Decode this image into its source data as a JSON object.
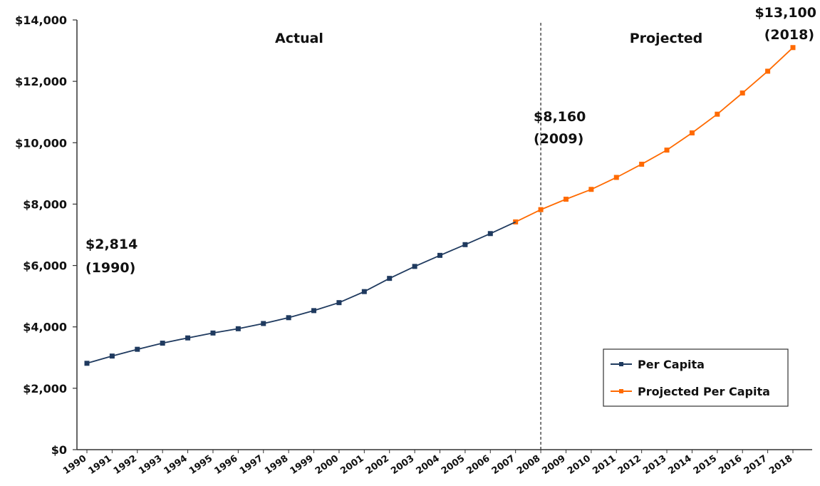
{
  "chart_data": {
    "type": "line",
    "x": [
      1990,
      1991,
      1992,
      1993,
      1994,
      1995,
      1996,
      1997,
      1998,
      1999,
      2000,
      2001,
      2002,
      2003,
      2004,
      2005,
      2006,
      2007,
      2008,
      2009,
      2010,
      2011,
      2012,
      2013,
      2014,
      2015,
      2016,
      2017,
      2018
    ],
    "x_tick_labels": [
      "1990",
      "1991",
      "1992",
      "1993",
      "1994",
      "1995",
      "1996",
      "1997",
      "1998",
      "1999",
      "2000",
      "2001",
      "2002",
      "2003",
      "2004",
      "2005",
      "2006",
      "2007",
      "2008",
      "2009",
      "2010",
      "2011",
      "2012",
      "2013",
      "2014",
      "2015",
      "2016",
      "2017",
      "2018"
    ],
    "y_tick_labels": [
      "$0",
      "$2,000",
      "$4,000",
      "$6,000",
      "$8,000",
      "$10,000",
      "$12,000",
      "$14,000"
    ],
    "y_ticks": [
      0,
      2000,
      4000,
      6000,
      8000,
      10000,
      12000,
      14000
    ],
    "ylim": [
      0,
      14000
    ],
    "grid": false,
    "legend_position": "bottom-right",
    "divider_year": 2008,
    "regions": {
      "actual": "Actual",
      "projected": "Projected"
    },
    "series": [
      {
        "name": "Per Capita",
        "color": "#1f3a5f",
        "x": [
          1990,
          1991,
          1992,
          1993,
          1994,
          1995,
          1996,
          1997,
          1998,
          1999,
          2000,
          2001,
          2002,
          2003,
          2004,
          2005,
          2006,
          2007
        ],
        "values": [
          2814,
          3050,
          3270,
          3470,
          3640,
          3800,
          3940,
          4110,
          4300,
          4530,
          4790,
          5150,
          5580,
          5970,
          6330,
          6680,
          7040,
          7420
        ]
      },
      {
        "name": "Projected Per Capita",
        "color": "#ff6a00",
        "x": [
          2007,
          2008,
          2009,
          2010,
          2011,
          2012,
          2013,
          2014,
          2015,
          2016,
          2017,
          2018
        ],
        "values": [
          7420,
          7820,
          8160,
          8480,
          8870,
          9300,
          9760,
          10320,
          10930,
          11620,
          12330,
          13100
        ]
      }
    ],
    "annotations": [
      {
        "id": "a1990",
        "line1": "$2,814",
        "line2": "(1990)"
      },
      {
        "id": "a2009",
        "line1": "$8,160",
        "line2": "(2009)"
      },
      {
        "id": "a2018",
        "line1": "$13,100",
        "line2": "(2018)"
      }
    ]
  }
}
